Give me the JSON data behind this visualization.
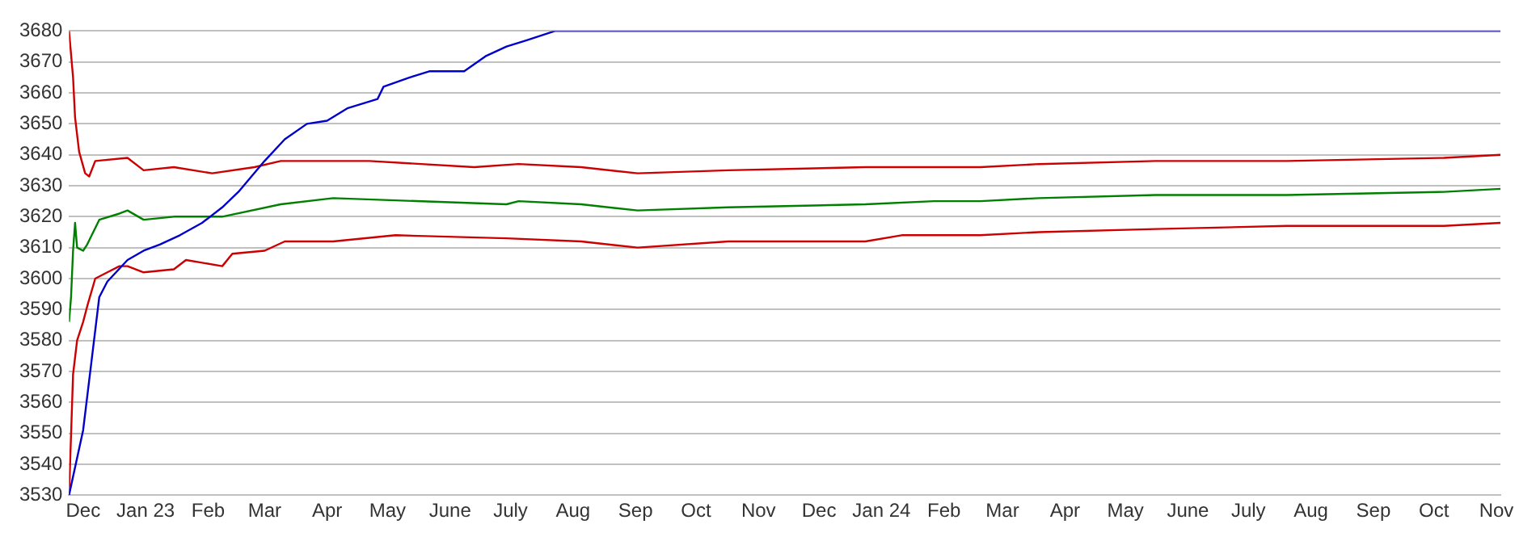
{
  "chart_data": {
    "type": "line",
    "grid": "y",
    "legend": false,
    "marker": "none",
    "line_style": "solid",
    "xlim": [
      "2022-11-24",
      "2024-11-03"
    ],
    "xticks": [
      {
        "value": "2022-12-01",
        "label": "Dec"
      },
      {
        "value": "2023-01-01",
        "label": "Jan 23"
      },
      {
        "value": "2023-02-01",
        "label": "Feb"
      },
      {
        "value": "2023-03-01",
        "label": "Mar"
      },
      {
        "value": "2023-04-01",
        "label": "Apr"
      },
      {
        "value": "2023-05-01",
        "label": "May"
      },
      {
        "value": "2023-06-01",
        "label": "June"
      },
      {
        "value": "2023-07-01",
        "label": "July"
      },
      {
        "value": "2023-08-01",
        "label": "Aug"
      },
      {
        "value": "2023-09-01",
        "label": "Sep"
      },
      {
        "value": "2023-10-01",
        "label": "Oct"
      },
      {
        "value": "2023-11-01",
        "label": "Nov"
      },
      {
        "value": "2023-12-01",
        "label": "Dec"
      },
      {
        "value": "2024-01-01",
        "label": "Jan 24"
      },
      {
        "value": "2024-02-01",
        "label": "Feb"
      },
      {
        "value": "2024-03-01",
        "label": "Mar"
      },
      {
        "value": "2024-04-01",
        "label": "Apr"
      },
      {
        "value": "2024-05-01",
        "label": "May"
      },
      {
        "value": "2024-06-01",
        "label": "June"
      },
      {
        "value": "2024-07-01",
        "label": "July"
      },
      {
        "value": "2024-08-01",
        "label": "Aug"
      },
      {
        "value": "2024-09-01",
        "label": "Sep"
      },
      {
        "value": "2024-10-01",
        "label": "Oct"
      },
      {
        "value": "2024-11-01",
        "label": "Nov"
      }
    ],
    "ylim": [
      3530,
      3680
    ],
    "yticks": [
      3530,
      3540,
      3550,
      3560,
      3570,
      3580,
      3590,
      3600,
      3610,
      3620,
      3630,
      3640,
      3650,
      3660,
      3670,
      3680
    ],
    "series": [
      {
        "color": "#0000cc",
        "x": [
          "2022-11-24",
          "2022-12-01",
          "2022-12-09",
          "2022-12-13",
          "2022-12-23",
          "2022-12-31",
          "2023-01-08",
          "2023-01-18",
          "2023-01-29",
          "2023-02-08",
          "2023-02-16",
          "2023-03-01",
          "2023-03-11",
          "2023-03-22",
          "2023-04-01",
          "2023-04-11",
          "2023-04-26",
          "2023-04-29",
          "2023-05-12",
          "2023-05-22",
          "2023-06-08",
          "2023-06-19",
          "2023-06-29",
          "2023-07-09",
          "2023-07-23",
          "2024-11-03"
        ],
        "values": [
          3530,
          3551,
          3594,
          3599,
          3606,
          3609,
          3611,
          3614,
          3618,
          3623,
          3628,
          3638,
          3645,
          3650,
          3651,
          3655,
          3658,
          3662,
          3665,
          3667,
          3667,
          3672,
          3675,
          3677,
          3680,
          3680
        ]
      },
      {
        "color": "#cc0000",
        "x": [
          "2022-11-24",
          "2022-11-26",
          "2022-11-27",
          "2022-11-29",
          "2022-12-02",
          "2022-12-04",
          "2022-12-07",
          "2022-12-23",
          "2022-12-31",
          "2023-01-15",
          "2023-02-03",
          "2023-02-24",
          "2023-03-09",
          "2023-04-22",
          "2023-06-13",
          "2023-07-05",
          "2023-08-05",
          "2023-09-02",
          "2023-10-17",
          "2023-12-24",
          "2024-01-27",
          "2024-02-19",
          "2024-03-19",
          "2024-05-16",
          "2024-07-20",
          "2024-10-06",
          "2024-11-03"
        ],
        "values": [
          3680,
          3665,
          3652,
          3641,
          3634,
          3633,
          3638,
          3639,
          3635,
          3636,
          3634,
          3636,
          3638,
          3638,
          3636,
          3637,
          3636,
          3634,
          3635,
          3636,
          3636,
          3636,
          3637,
          3638,
          3638,
          3639,
          3640
        ]
      },
      {
        "color": "#008000",
        "x": [
          "2022-11-24",
          "2022-11-25",
          "2022-11-26",
          "2022-11-27",
          "2022-11-28",
          "2022-12-01",
          "2022-12-03",
          "2022-12-09",
          "2022-12-19",
          "2022-12-23",
          "2022-12-31",
          "2023-01-15",
          "2023-02-08",
          "2023-03-09",
          "2023-04-04",
          "2023-06-29",
          "2023-07-05",
          "2023-08-05",
          "2023-09-02",
          "2023-10-17",
          "2023-12-24",
          "2024-01-27",
          "2024-02-19",
          "2024-03-19",
          "2024-05-16",
          "2024-07-20",
          "2024-10-06",
          "2024-11-03"
        ],
        "values": [
          3586,
          3594,
          3609,
          3618,
          3610,
          3609,
          3611,
          3619,
          3621,
          3622,
          3619,
          3620,
          3620,
          3624,
          3626,
          3624,
          3625,
          3624,
          3622,
          3623,
          3624,
          3625,
          3625,
          3626,
          3627,
          3627,
          3628,
          3629
        ]
      },
      {
        "color": "#cc0000",
        "x": [
          "2022-11-24",
          "2022-11-26",
          "2022-11-28",
          "2022-12-01",
          "2022-12-03",
          "2022-12-07",
          "2022-12-13",
          "2022-12-19",
          "2022-12-23",
          "2022-12-31",
          "2023-01-15",
          "2023-01-21",
          "2023-02-08",
          "2023-02-13",
          "2023-03-01",
          "2023-03-11",
          "2023-04-04",
          "2023-05-05",
          "2023-06-29",
          "2023-08-05",
          "2023-09-02",
          "2023-10-17",
          "2023-12-24",
          "2024-01-11",
          "2024-01-27",
          "2024-02-19",
          "2024-03-19",
          "2024-05-16",
          "2024-07-20",
          "2024-10-06",
          "2024-11-03"
        ],
        "values": [
          3530,
          3569,
          3580,
          3586,
          3591,
          3600,
          3602,
          3604,
          3604,
          3602,
          3603,
          3606,
          3604,
          3608,
          3609,
          3612,
          3612,
          3614,
          3613,
          3612,
          3610,
          3612,
          3612,
          3614,
          3614,
          3614,
          3615,
          3616,
          3617,
          3617,
          3618
        ]
      }
    ]
  }
}
